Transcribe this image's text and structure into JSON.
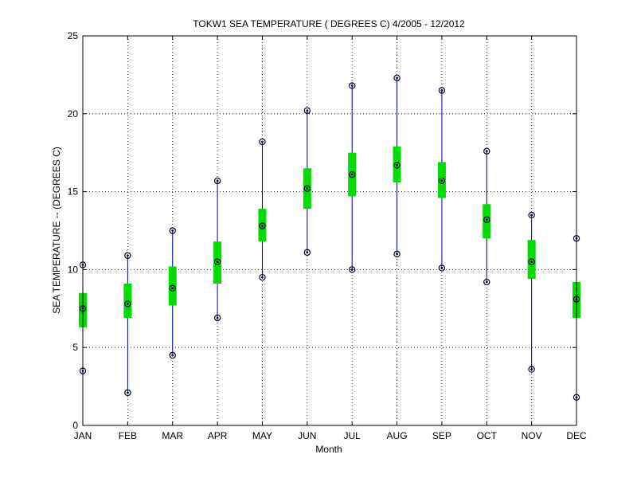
{
  "chart_data": {
    "type": "box",
    "title": "TOKW1  SEA TEMPERATURE ( DEGREES C) 4/2005 - 12/2012",
    "xlabel": "Month",
    "ylabel": "SEA TEMPERATURE -- (DEGREES C)",
    "ylim": [
      0,
      25
    ],
    "yticks": [
      0,
      5,
      10,
      15,
      20,
      25
    ],
    "grid": true,
    "categories": [
      "JAN",
      "FEB",
      "MAR",
      "APR",
      "MAY",
      "JUN",
      "JUL",
      "AUG",
      "SEP",
      "OCT",
      "NOV",
      "DEC"
    ],
    "min": [
      3.5,
      2.1,
      4.5,
      6.9,
      9.5,
      11.1,
      10.0,
      11.0,
      10.1,
      9.2,
      3.6,
      1.8
    ],
    "q1": [
      6.3,
      6.9,
      7.7,
      9.1,
      11.8,
      13.9,
      14.7,
      15.6,
      14.6,
      12.0,
      9.4,
      6.9
    ],
    "median": [
      7.5,
      7.8,
      8.8,
      10.5,
      12.8,
      15.2,
      16.1,
      16.7,
      15.7,
      13.2,
      10.5,
      8.1
    ],
    "q3": [
      8.5,
      9.1,
      10.2,
      11.8,
      13.9,
      16.5,
      17.5,
      17.9,
      16.9,
      14.2,
      11.9,
      9.2
    ],
    "max": [
      10.3,
      10.9,
      12.5,
      15.7,
      18.2,
      20.2,
      21.8,
      22.3,
      21.5,
      17.6,
      13.5,
      12.0
    ],
    "colors": {
      "whisker": "#0000b0",
      "box": "#00dd00",
      "marker": "#000033"
    }
  }
}
